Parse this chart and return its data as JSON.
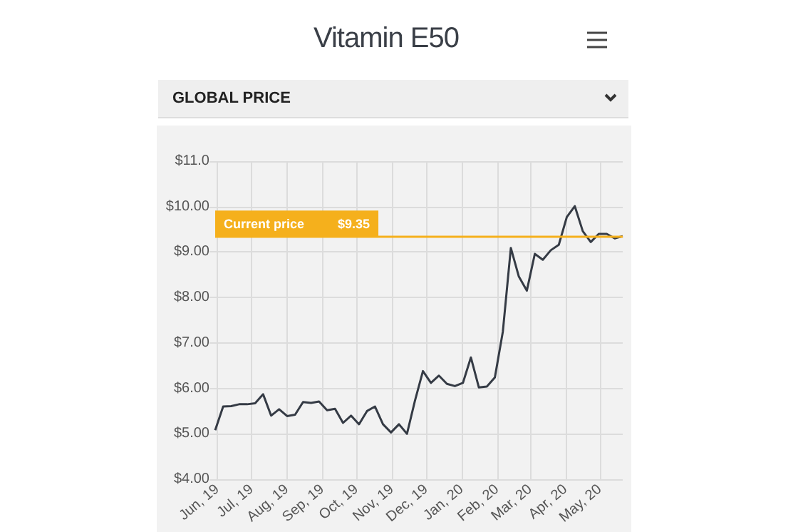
{
  "chart_data": {
    "type": "line",
    "title": "Vitamin E50",
    "subtitle": "GLOBAL PRICE",
    "x": [
      "2019-05-30",
      "2019-06-06",
      "2019-06-13",
      "2019-06-20",
      "2019-06-27",
      "2019-07-04",
      "2019-07-11",
      "2019-07-18",
      "2019-07-25",
      "2019-08-01",
      "2019-08-08",
      "2019-08-15",
      "2019-08-22",
      "2019-08-29",
      "2019-09-05",
      "2019-09-12",
      "2019-09-19",
      "2019-09-26",
      "2019-10-03",
      "2019-10-10",
      "2019-10-17",
      "2019-10-24",
      "2019-10-31",
      "2019-11-07",
      "2019-11-14",
      "2019-11-21",
      "2019-11-28",
      "2019-12-05",
      "2019-12-12",
      "2019-12-19",
      "2019-12-26",
      "2020-01-02",
      "2020-01-09",
      "2020-01-16",
      "2020-01-23",
      "2020-01-30",
      "2020-02-06",
      "2020-02-13",
      "2020-02-20",
      "2020-02-27",
      "2020-03-05",
      "2020-03-12",
      "2020-03-19",
      "2020-03-26",
      "2020-04-02",
      "2020-04-09",
      "2020-04-16",
      "2020-04-23",
      "2020-04-30",
      "2020-05-07",
      "2020-05-14",
      "2020-05-21"
    ],
    "series": [
      {
        "color": "#353b45",
        "values": [
          5.08,
          5.6,
          5.61,
          5.65,
          5.65,
          5.67,
          5.87,
          5.4,
          5.54,
          5.39,
          5.42,
          5.7,
          5.68,
          5.71,
          5.52,
          5.55,
          5.24,
          5.4,
          5.21,
          5.5,
          5.6,
          5.21,
          5.03,
          5.21,
          5.0,
          5.73,
          6.38,
          6.12,
          6.28,
          6.1,
          6.05,
          6.12,
          6.68,
          6.02,
          6.04,
          6.24,
          7.25,
          9.09,
          8.46,
          8.15,
          8.96,
          8.83,
          9.04,
          9.16,
          9.77,
          10.01,
          9.46,
          9.22,
          9.4,
          9.4,
          9.3,
          9.35
        ]
      }
    ],
    "xlim": [
      "2019-05-30",
      "2020-05-21"
    ],
    "xticks": [
      {
        "value": "2019-06-01",
        "label": "Jun, 19"
      },
      {
        "value": "2019-07-01",
        "label": "Jul, 19"
      },
      {
        "value": "2019-08-01",
        "label": "Aug, 19"
      },
      {
        "value": "2019-09-01",
        "label": "Sep, 19"
      },
      {
        "value": "2019-10-01",
        "label": "Oct, 19"
      },
      {
        "value": "2019-11-01",
        "label": "Nov, 19"
      },
      {
        "value": "2019-12-01",
        "label": "Dec, 19"
      },
      {
        "value": "2020-01-01",
        "label": "Jan, 20"
      },
      {
        "value": "2020-02-01",
        "label": "Feb, 20"
      },
      {
        "value": "2020-03-01",
        "label": "Mar, 20"
      },
      {
        "value": "2020-04-01",
        "label": "Apr, 20"
      },
      {
        "value": "2020-05-01",
        "label": "May, 20"
      }
    ],
    "ylim": [
      4,
      11
    ],
    "yticks": [
      {
        "value": 4,
        "label": "$4.00"
      },
      {
        "value": 5,
        "label": "$5.00"
      },
      {
        "value": 6,
        "label": "$6.00"
      },
      {
        "value": 7,
        "label": "$7.00"
      },
      {
        "value": 8,
        "label": "$8.00"
      },
      {
        "value": 9,
        "label": "$9.00"
      },
      {
        "value": 10,
        "label": "$10.00"
      },
      {
        "value": 11,
        "label": "$11.0"
      }
    ],
    "ref_lines": [
      {
        "axis": "y",
        "value": 9.35,
        "label": "Current price",
        "color": "#f5b01c"
      }
    ],
    "annotations": [
      {
        "text": "$9.35",
        "y": 9.35
      }
    ],
    "grid": true,
    "marker": "none",
    "line_style": "solid"
  }
}
